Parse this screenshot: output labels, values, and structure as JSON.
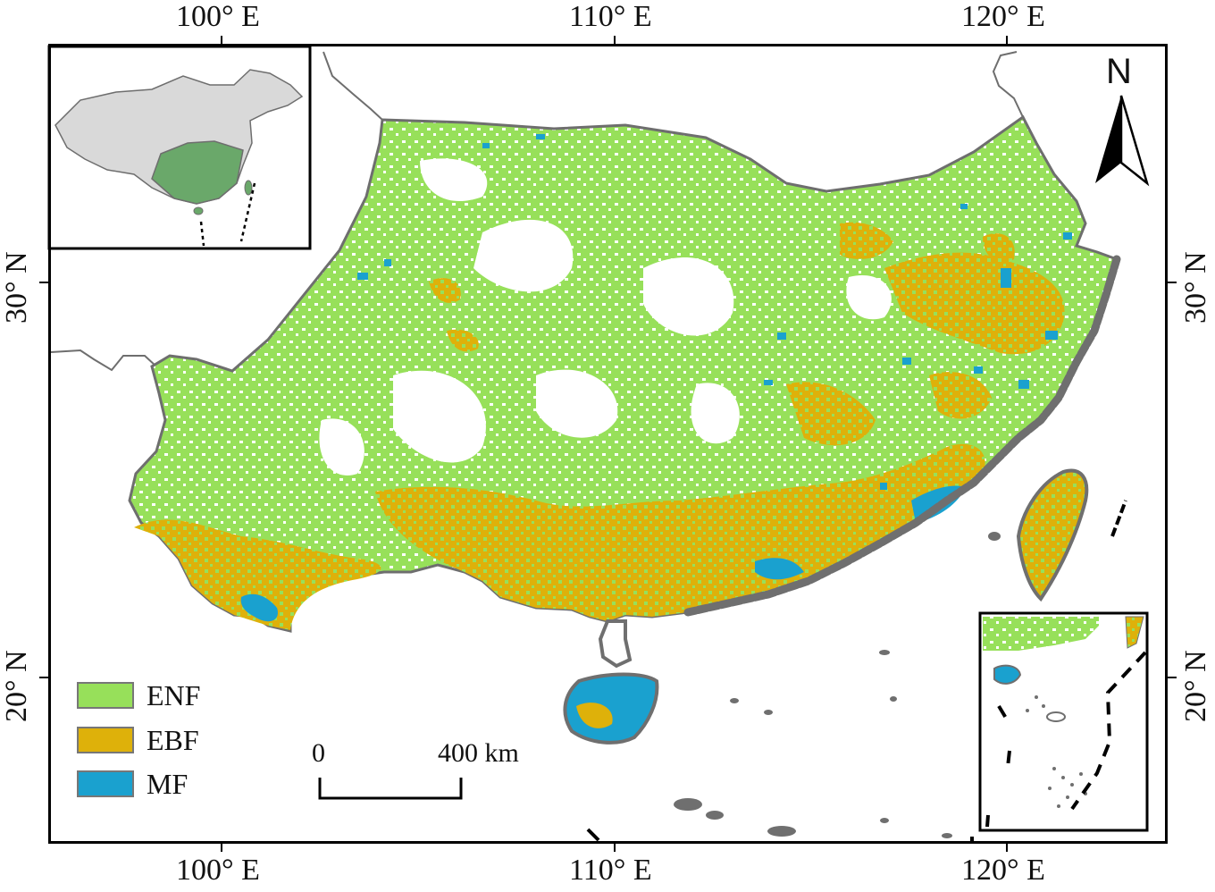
{
  "axes": {
    "top_ticks": [
      "100° E",
      "110° E",
      "120° E"
    ],
    "bottom_ticks": [
      "100° E",
      "110° E",
      "120° E"
    ],
    "left_ticks": [
      "30° N",
      "20° N"
    ],
    "right_ticks": [
      "30° N",
      "20° N"
    ]
  },
  "legend": {
    "items": [
      {
        "label": "ENF",
        "color": "#97e05a"
      },
      {
        "label": "EBF",
        "color": "#deb10a"
      },
      {
        "label": "MF",
        "color": "#1aa1cf"
      }
    ]
  },
  "scale_bar": {
    "start_label": "0",
    "end_label": "400 km"
  },
  "north_arrow": {
    "label": "N",
    "icon": "north-arrow-icon"
  },
  "colors": {
    "region_outline": "#6e6e6e",
    "coast_gray": "#6f6f6f",
    "inset_land": "#d9d9d9",
    "inset_highlight": "#6aa86a"
  }
}
